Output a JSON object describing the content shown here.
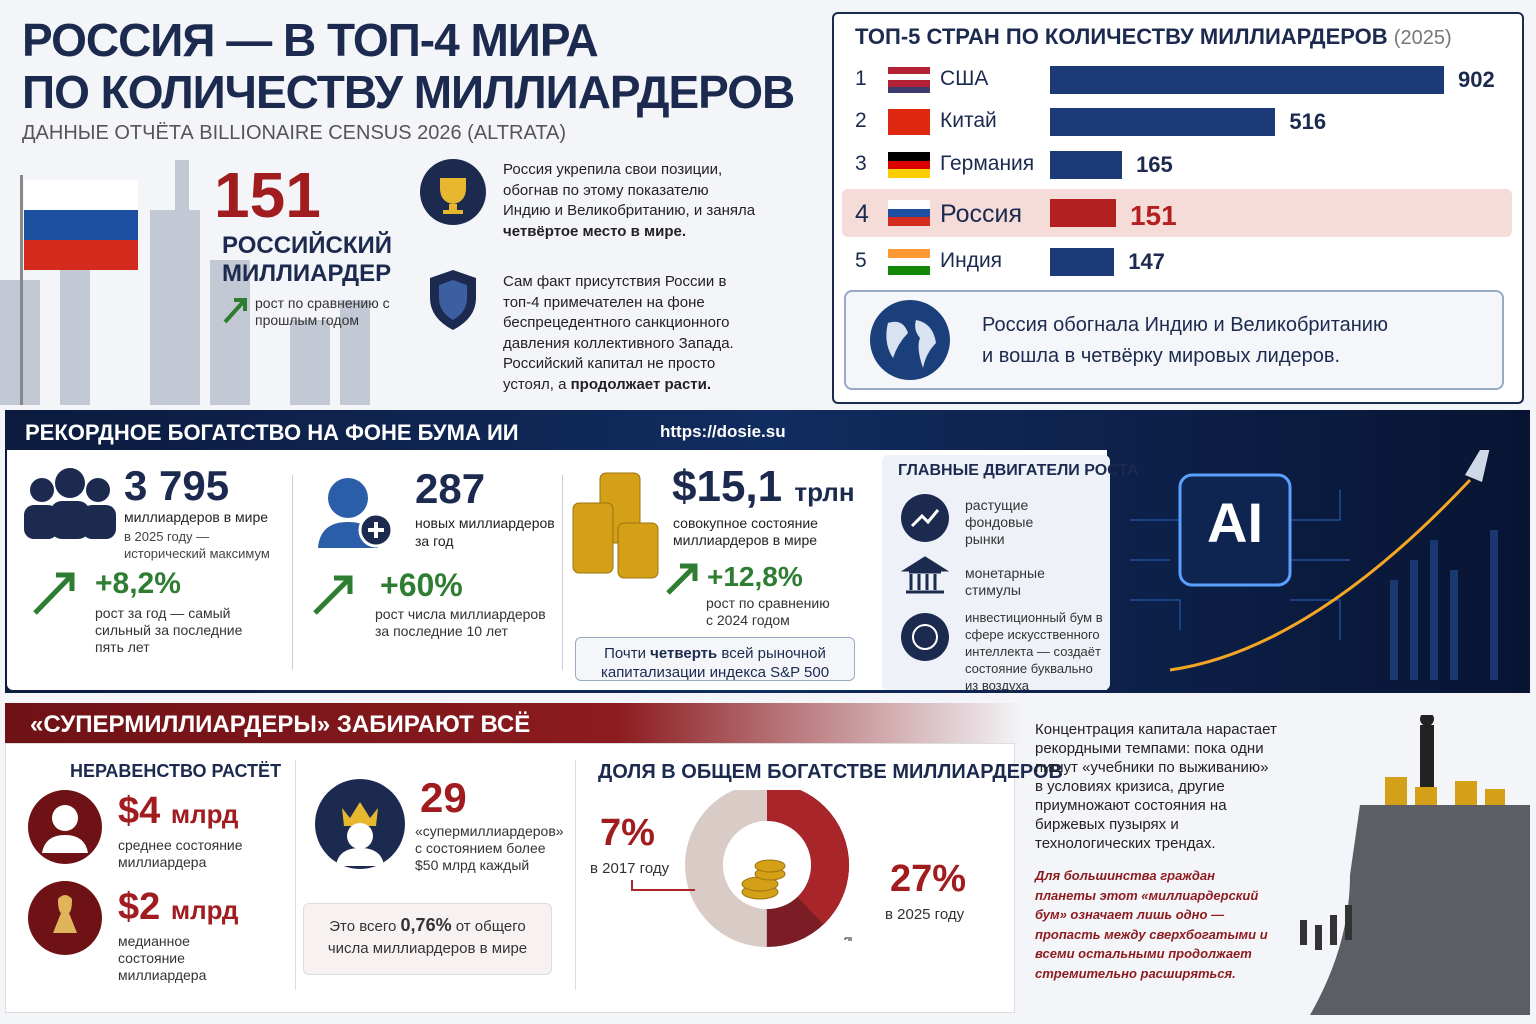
{
  "header": {
    "title_line1": "РОССИЯ — В ТОП-4 МИРА",
    "title_line2": "ПО КОЛИЧЕСТВУ МИЛЛИАРДЕРОВ",
    "subtitle": "ДАННЫЕ ОТЧЁТА BILLIONAIRE CENSUS 2026 (ALTRATA)"
  },
  "russia": {
    "count": "151",
    "label_line1": "РОССИЙСКИЙ",
    "label_line2": "МИЛЛИАРДЕР",
    "growth": "рост по сравнению с прошлым годом"
  },
  "position": {
    "p1": [
      "Россия укрепила свои позиции, обогнав по этому показателю Индию и Великобританию, и заняла ",
      "четвёртое место в мире."
    ],
    "p2": [
      "Сам факт присутствия России в топ-4 примечателен на фоне беспрецедентного санкционного давления коллективного Запада. Российский капитал не просто устоял, а ",
      "продолжает расти."
    ]
  },
  "top5": {
    "title": "ТОП-5 СТРАН ПО КОЛИЧЕСТВУ МИЛЛИАРДЕРОВ",
    "year": "(2025)",
    "bar_color": "#1d3a78",
    "highlight_color": "#b3201f",
    "highlight": 3,
    "rows": [
      {
        "rank": 1,
        "country": "США",
        "value": 902
      },
      {
        "rank": 2,
        "country": "Китай",
        "value": 516
      },
      {
        "rank": 3,
        "country": "Германия",
        "value": 165
      },
      {
        "rank": 4,
        "country": "Россия",
        "value": 151
      },
      {
        "rank": 5,
        "country": "Индия",
        "value": 147
      }
    ],
    "note": [
      "Россия обогнала Индию и Великобританию",
      "и вошла в четвёрку мировых лидеров."
    ]
  },
  "wealth": {
    "title": "РЕКОРДНОЕ БОГАТСТВО НА ФОНЕ БУМА ИИ",
    "url": "https://dosie.su",
    "stats": [
      {
        "value": "3 795",
        "desc": "миллиардеров в мире",
        "note": "в 2025 году — исторический максимум",
        "change": "+8,2%",
        "change_desc": "рост за год — самый сильный за последние пять лет"
      },
      {
        "value": "287",
        "desc": "новых миллиардеров",
        "note": "за год",
        "change": "+60%",
        "change_desc": "рост числа миллиардеров за последние 10 лет"
      },
      {
        "value": "$15,1",
        "unit": "трлн",
        "desc": "совокупное состояние миллиардеров в мире",
        "change": "+12,8%",
        "change_desc": "рост по сравнению с 2024 годом",
        "box": [
          "Почти ",
          "четверть",
          " всей рыночной капитализации индекса S&P 500"
        ]
      }
    ],
    "drivers": {
      "title": "ГЛАВНЫЕ ДВИГАТЕЛИ РОСТА",
      "items": [
        "растущие фондовые рынки",
        "монетарные стимулы",
        "инвестиционный бум в сфере искусственного интеллекта — создаёт состояние буквально из воздуха"
      ]
    },
    "ai": "AI"
  },
  "super": {
    "title": "«СУПЕРМИЛЛИАРДЕРЫ» ЗАБИРАЮТ ВСЁ",
    "inequality": {
      "title": "НЕРАВЕНСТВО РАСТЁТ",
      "items": [
        {
          "value": "$4",
          "unit": "млрд",
          "desc": "среднее состояние миллиардера"
        },
        {
          "value": "$2",
          "unit": "млрд",
          "desc": "медианное состояние миллиардера"
        }
      ]
    },
    "top": {
      "value": "29",
      "desc": "«супермиллиардеров» с состоянием более $50 млрд каждый",
      "box": [
        "Это всего ",
        "0,76%",
        " от общего числа миллиардеров в мире"
      ]
    },
    "share": {
      "title": "ДОЛЯ В ОБЩЕМ БОГАТСТВЕ МИЛЛИАРДЕРОВ",
      "a": {
        "value": "7%",
        "year": "в 2017 году"
      },
      "b": {
        "value": "27%",
        "year": "в 2025 году"
      }
    },
    "text1": "Концентрация капитала нарастает рекордными темпами: пока одни пишут «учебники по выживанию» в условиях кризиса, другие приумножают состояния на биржевых пузырях и технологических трендах.",
    "text2": "Для большинства граждан планеты этот «миллиардерский бум» означает лишь одно — пропасть между сверхбогатыми и всеми остальными продолжает стремительно расширяться."
  }
}
